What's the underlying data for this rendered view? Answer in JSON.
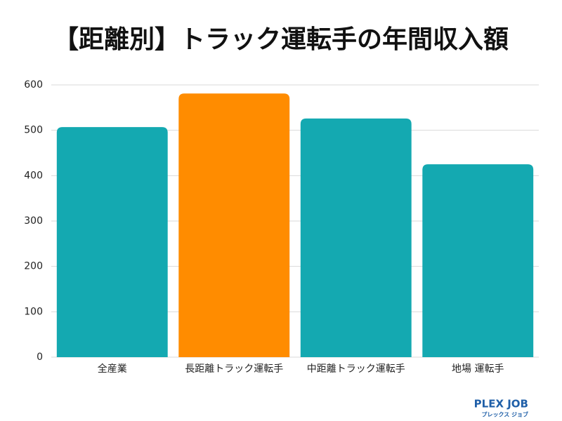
{
  "chart_data": {
    "type": "bar",
    "title": "【距離別】トラック運転手の年間収入額",
    "categories": [
      "全産業",
      "長距離トラック運転手",
      "中距離トラック運転手",
      "地場 運転手"
    ],
    "values": [
      507,
      581,
      526,
      425
    ],
    "colors": [
      "#14a9b1",
      "#ff8c00",
      "#14a9b1",
      "#14a9b1"
    ],
    "ylim": [
      0,
      600
    ],
    "yticks": [
      0,
      100,
      200,
      300,
      400,
      500,
      600
    ],
    "grid": true
  },
  "logo": {
    "name": "PLEX JOB",
    "sub": "プレックス ジョブ"
  }
}
